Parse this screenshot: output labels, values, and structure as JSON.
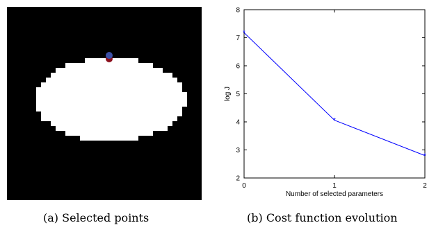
{
  "figure": {
    "left": {
      "caption": "(a) Selected points",
      "colors": {
        "background": "#000000",
        "shape": "#ffffff",
        "point_blue": "#3b4fa6",
        "point_red": "#8b0f1c"
      }
    },
    "right": {
      "caption": "(b) Cost function evolution"
    }
  },
  "chart_data": {
    "type": "line",
    "title": "",
    "xlabel": "Number of selected parameters",
    "ylabel": "log J",
    "xlim": [
      0,
      2
    ],
    "ylim": [
      2,
      8
    ],
    "xticks": [
      "0",
      "1",
      "2"
    ],
    "yticks": [
      "2",
      "3",
      "4",
      "5",
      "6",
      "7",
      "8"
    ],
    "grid": false,
    "series": [
      {
        "x": [
          0,
          1,
          2
        ],
        "values": [
          7.18,
          4.06,
          2.8
        ],
        "color": "#0000ff",
        "marker": "star"
      }
    ]
  }
}
